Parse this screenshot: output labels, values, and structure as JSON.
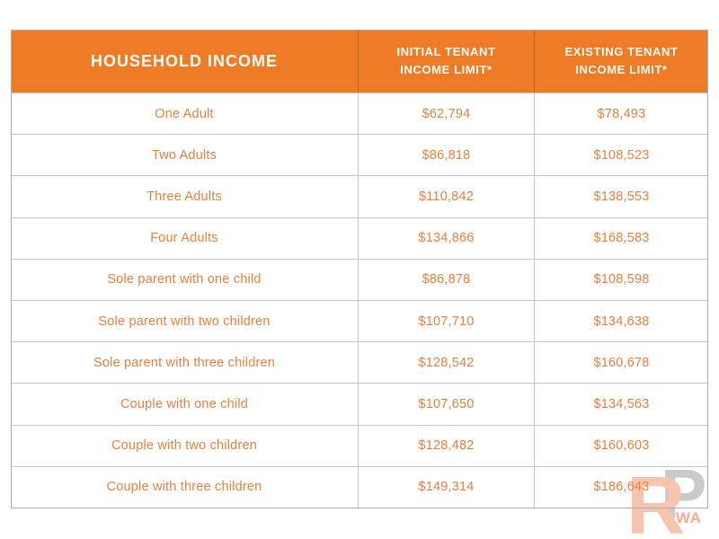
{
  "chart_data": {
    "type": "table",
    "columns": [
      "HOUSEHOLD INCOME",
      "INITIAL TENANT INCOME LIMIT*",
      "EXISTING TENANT INCOME LIMIT*"
    ],
    "rows": [
      [
        "One Adult",
        "$62,794",
        "$78,493"
      ],
      [
        "Two Adults",
        "$86,818",
        "$108,523"
      ],
      [
        "Three Adults",
        "$110,842",
        "$138,553"
      ],
      [
        "Four Adults",
        "$134,866",
        "$168,583"
      ],
      [
        "Sole parent with one child",
        "$86,878",
        "$108,598"
      ],
      [
        "Sole parent with two children",
        "$107,710",
        "$134,638"
      ],
      [
        "Sole parent with three children",
        "$128,542",
        "$160,678"
      ],
      [
        "Couple with one child",
        "$107,650",
        "$134,563"
      ],
      [
        "Couple with two children",
        "$128,482",
        "$160,603"
      ],
      [
        "Couple with three children",
        "$149,314",
        "$186,643"
      ]
    ]
  },
  "header": {
    "household": "HOUSEHOLD INCOME",
    "initial_line1": "INITIAL TENANT",
    "initial_line2": "INCOME LIMIT*",
    "existing_line1": "EXISTING TENANT",
    "existing_line2": "INCOME LIMIT*"
  },
  "watermark": {
    "letter_r": "R",
    "letter_p": "P",
    "suffix": "WA"
  },
  "colors": {
    "header_bg": "#EE7C26",
    "header_text": "#FDFBF7",
    "cell_text": "#E2823E",
    "grid_border": "#C6C6C6",
    "outer_border": "#ADADAD",
    "logo_r": "#F6C5B0",
    "logo_p": "#C9CACB",
    "logo_wa": "#F2AE90"
  }
}
